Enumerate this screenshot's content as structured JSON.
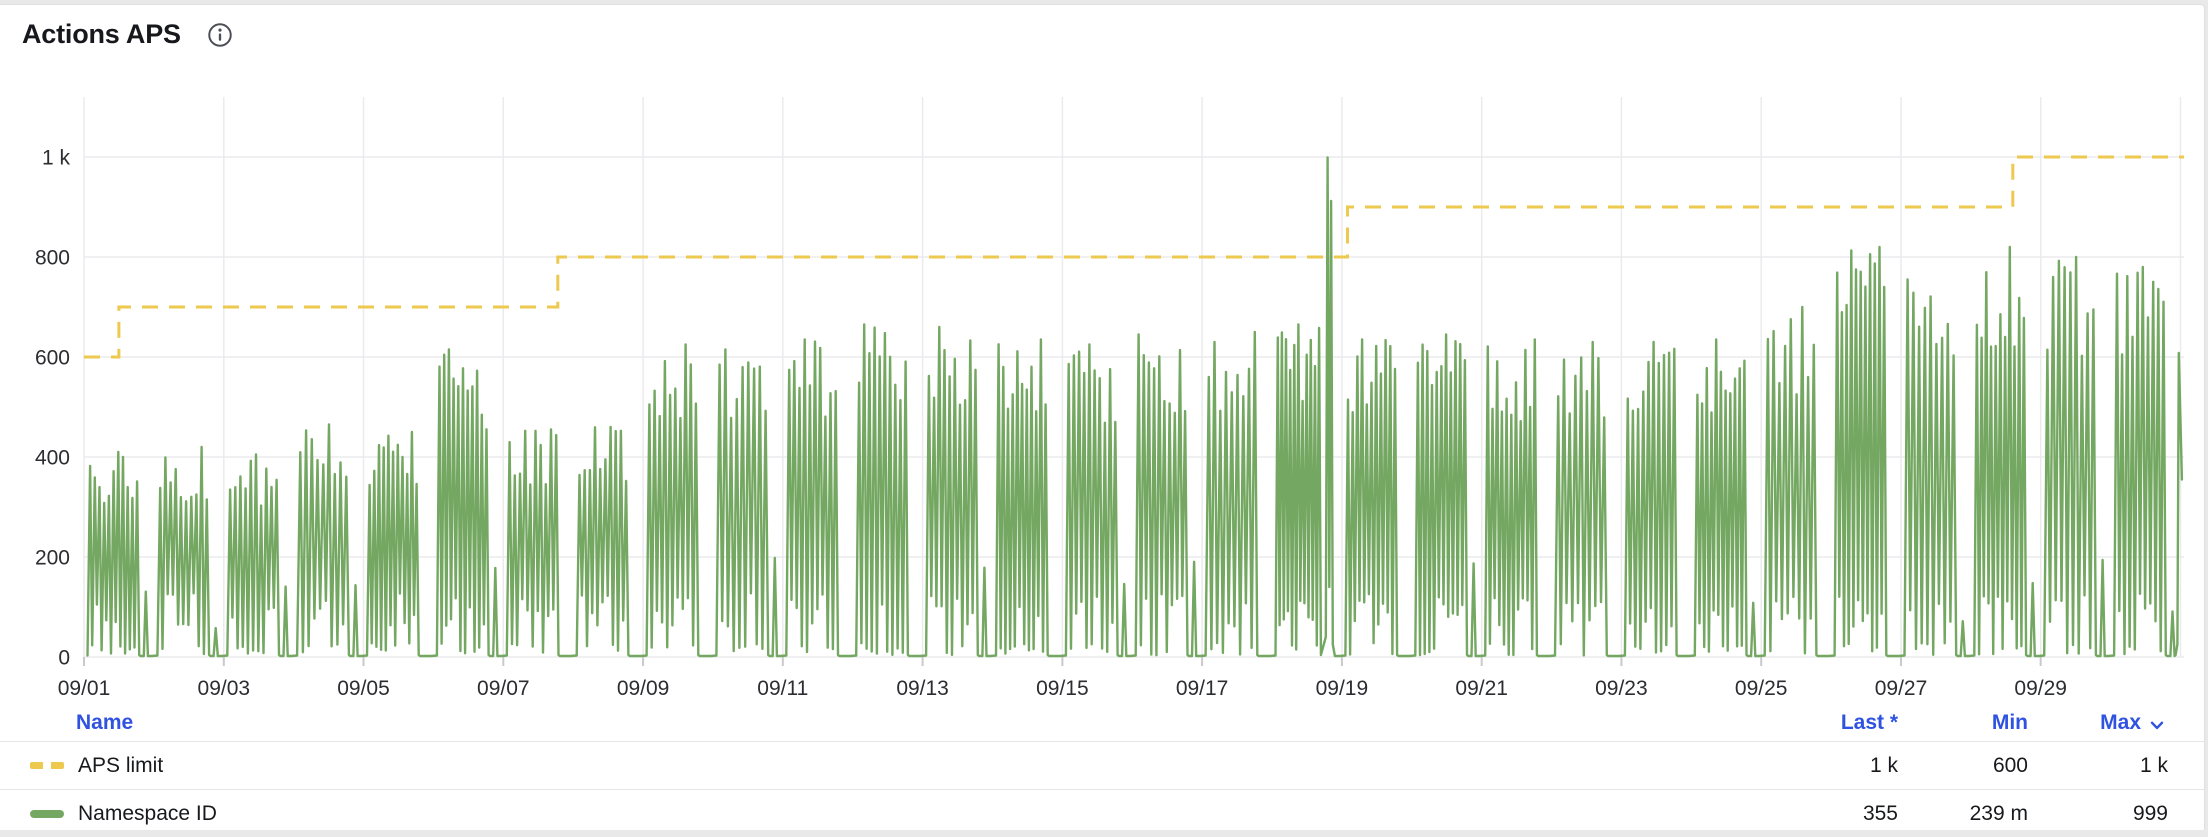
{
  "panel": {
    "title": "Actions APS"
  },
  "colors": {
    "accent_blue": "#2f53e0",
    "aps_limit_yellow": "#edc94f",
    "namespace_green": "#74a761"
  },
  "chart_data": {
    "type": "line",
    "title": "Actions APS",
    "xlim_days": [
      0,
      30.05
    ],
    "ylim": [
      0,
      1120
    ],
    "grid": true,
    "grid_days": [
      0,
      30,
      2
    ],
    "x_ticks": [
      {
        "day": 0,
        "label": "09/01"
      },
      {
        "day": 2,
        "label": "09/03"
      },
      {
        "day": 4,
        "label": "09/05"
      },
      {
        "day": 6,
        "label": "09/07"
      },
      {
        "day": 8,
        "label": "09/09"
      },
      {
        "day": 10,
        "label": "09/11"
      },
      {
        "day": 12,
        "label": "09/13"
      },
      {
        "day": 14,
        "label": "09/15"
      },
      {
        "day": 16,
        "label": "09/17"
      },
      {
        "day": 18,
        "label": "09/19"
      },
      {
        "day": 20,
        "label": "09/21"
      },
      {
        "day": 22,
        "label": "09/23"
      },
      {
        "day": 24,
        "label": "09/25"
      },
      {
        "day": 26,
        "label": "09/27"
      },
      {
        "day": 28,
        "label": "09/29"
      }
    ],
    "y_ticks": [
      {
        "v": 0,
        "label": "0"
      },
      {
        "v": 200,
        "label": "200"
      },
      {
        "v": 400,
        "label": "400"
      },
      {
        "v": 600,
        "label": "600"
      },
      {
        "v": 800,
        "label": "800"
      },
      {
        "v": 1000,
        "label": "1 k"
      }
    ],
    "series": [
      {
        "name": "APS limit",
        "color": "#edc94f",
        "style": "dashed",
        "shape": "step",
        "steps": [
          [
            0,
            600
          ],
          [
            0.5,
            700
          ],
          [
            6.78,
            800
          ],
          [
            18.08,
            900
          ],
          [
            27.6,
            1000
          ]
        ],
        "last": "1 k",
        "min": "600",
        "max": "1 k"
      },
      {
        "name": "Namespace ID",
        "color": "#74a761",
        "style": "solid",
        "shape": "noisy-daily-cycles",
        "description": "Oscillates ~10x per day between near 0 and the daily peak, dipping to ~0 between daily clusters",
        "daily_peaks": [
          410,
          420,
          405,
          465,
          450,
          615,
          455,
          460,
          625,
          615,
          635,
          665,
          660,
          635,
          625,
          645,
          650,
          665,
          635,
          645,
          635,
          630,
          630,
          635,
          700,
          820,
          755,
          820,
          800,
          780
        ],
        "anomaly_day": 17,
        "anomaly_points": [
          [
            17.77,
            40
          ],
          [
            17.795,
            999
          ],
          [
            17.82,
            140
          ],
          [
            17.845,
            912
          ],
          [
            17.87,
            25
          ]
        ],
        "tail_points": [
          [
            29.93,
            4
          ],
          [
            29.955,
            25
          ],
          [
            29.975,
            608
          ],
          [
            30.0,
            470
          ],
          [
            30.02,
            355
          ]
        ],
        "last": "355",
        "min": "239 m",
        "max": "999"
      }
    ]
  },
  "legend": {
    "columns": [
      {
        "label": "Name"
      },
      {
        "label": "Last *"
      },
      {
        "label": "Min"
      },
      {
        "label": "Max",
        "sorted": "desc"
      }
    ],
    "rows": [
      {
        "name": "APS limit",
        "swatch": "dashed-yellow",
        "last": "1 k",
        "min": "600",
        "max": "1 k"
      },
      {
        "name": "Namespace ID",
        "swatch": "solid-green",
        "last": "355",
        "min": "239 m",
        "max": "999"
      }
    ]
  }
}
